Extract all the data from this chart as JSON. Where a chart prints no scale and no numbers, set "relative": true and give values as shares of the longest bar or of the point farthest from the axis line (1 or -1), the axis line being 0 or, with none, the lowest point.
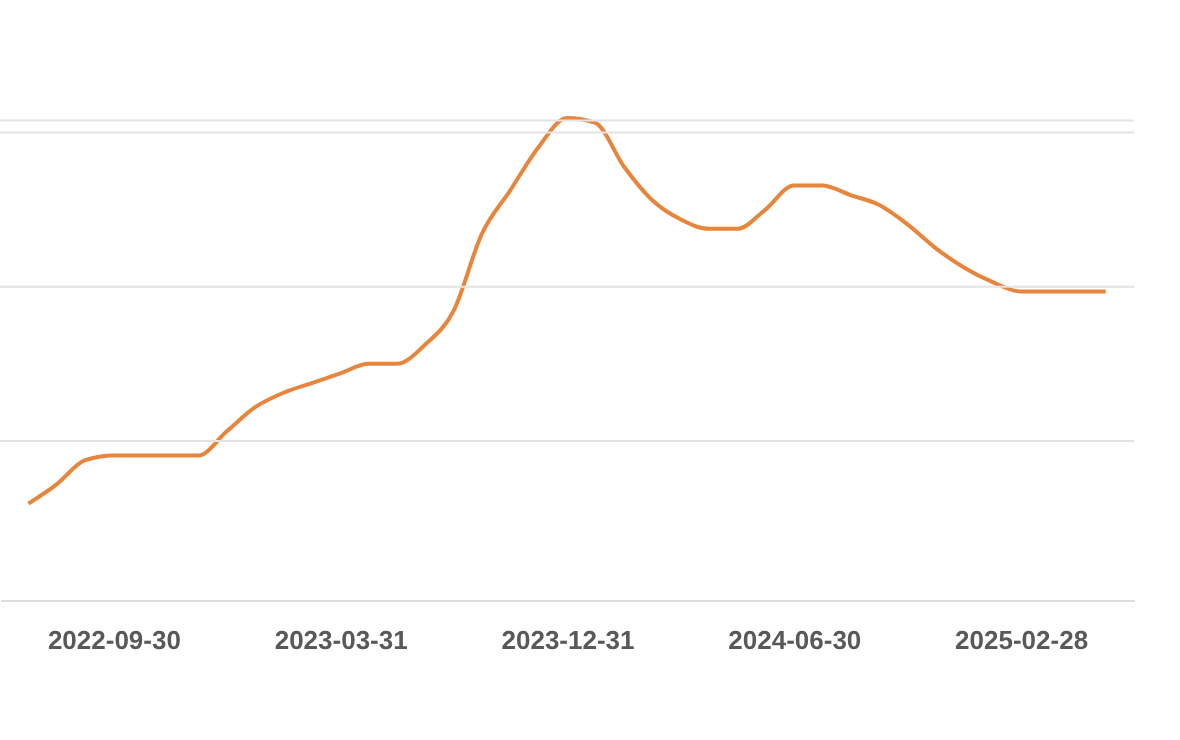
{
  "chart_data": {
    "type": "line",
    "relative": true,
    "tick_labels": "x",
    "ref_lines": [
      {
        "axis": "y",
        "value": 0.33,
        "color": "#e3e3e3"
      },
      {
        "axis": "y",
        "value": 0.65,
        "color": "#e3e3e3"
      },
      {
        "axis": "y",
        "value": 0.97,
        "color": "#e3e3e3"
      },
      {
        "axis": "y",
        "value": 0.995,
        "color": "#e3e3e3"
      }
    ],
    "categories": [
      null,
      null,
      null,
      "2022-09-30",
      null,
      null,
      null,
      null,
      null,
      null,
      null,
      "2023-03-31",
      null,
      null,
      null,
      null,
      null,
      null,
      null,
      "2023-12-31",
      null,
      null,
      null,
      null,
      null,
      null,
      null,
      "2024-06-30",
      null,
      null,
      null,
      null,
      null,
      null,
      null,
      "2025-02-28",
      null,
      null,
      null
    ],
    "series": [
      {
        "color": "#e8853d",
        "values": [
          0.2,
          0.24,
          0.29,
          0.3,
          0.3,
          0.3,
          0.3,
          0.35,
          0.4,
          0.43,
          0.45,
          0.47,
          0.49,
          0.49,
          0.53,
          0.6,
          0.76,
          0.85,
          0.94,
          1,
          0.99,
          0.9,
          0.83,
          0.79,
          0.77,
          0.77,
          0.81,
          0.86,
          0.86,
          0.84,
          0.82,
          0.78,
          0.73,
          0.69,
          0.66,
          0.64,
          0.64,
          0.64,
          0.64
        ]
      }
    ]
  }
}
